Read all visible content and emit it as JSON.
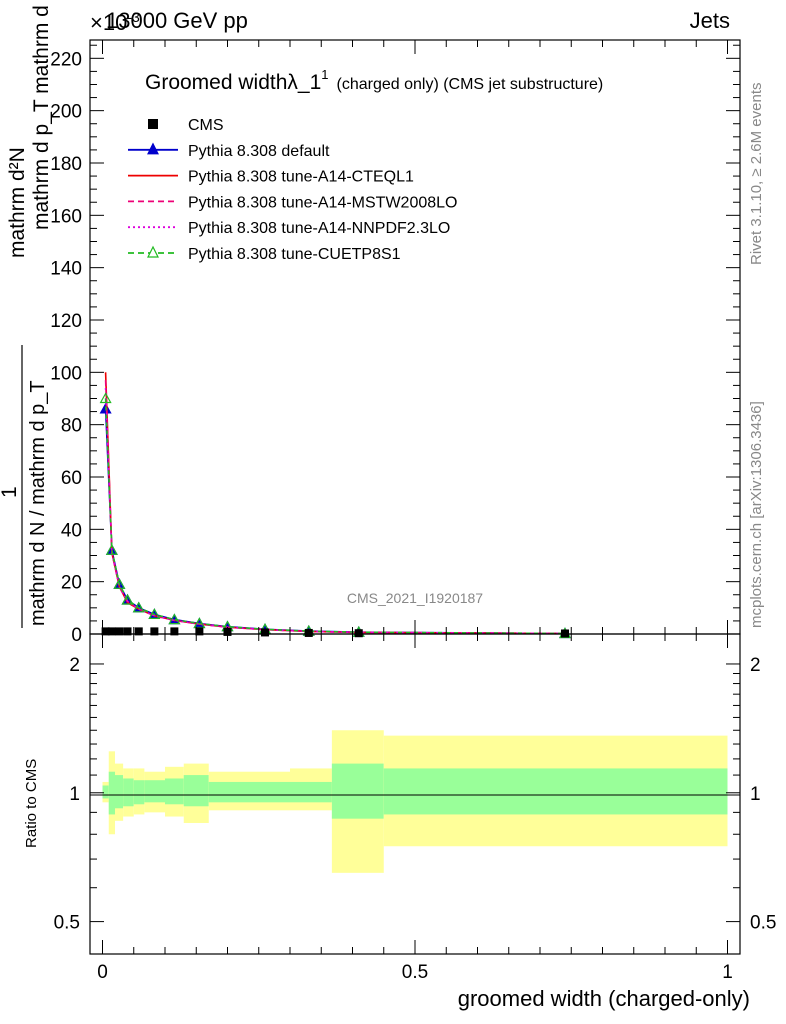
{
  "header": {
    "left": "13000 GeV pp",
    "right": "Jets",
    "exponent": "×10",
    "exponent_power": "-3"
  },
  "side_labels": {
    "rivet": "Rivet 3.1.10, ≥ 2.6M events",
    "mcplots": "mcplots.cern.ch [arXiv:1306.3436]"
  },
  "watermark": "CMS_2021_I1920187",
  "plot_title": {
    "main": "Groomed width",
    "lambda": "λ_1",
    "sup": "1",
    "sub": "(charged only) (CMS jet substructure)"
  },
  "legend": [
    {
      "label": "CMS",
      "color": "#000000",
      "style": "square"
    },
    {
      "label": "Pythia 8.308 default",
      "color": "#0000cc",
      "style": "line-triangle"
    },
    {
      "label": "Pythia 8.308 tune-A14-CTEQL1",
      "color": "#ee0000",
      "style": "solid"
    },
    {
      "label": "Pythia 8.308 tune-A14-MSTW2008LO",
      "color": "#ee0077",
      "style": "dashed"
    },
    {
      "label": "Pythia 8.308 tune-A14-NNPDF2.3LO",
      "color": "#dd00dd",
      "style": "dotted"
    },
    {
      "label": "Pythia 8.308 tune-CUETP8S1",
      "color": "#22bb22",
      "style": "dashed-open-triangle"
    }
  ],
  "ylabel_main": {
    "numerator": "mathrm d²N",
    "fraction_top": "1",
    "fraction_bottom": "mathrm d N / mathrm d p_T",
    "tail": "mathrm d p_T mathrm d lambda"
  },
  "ylabel_ratio": "Ratio to CMS",
  "xlabel": "groomed width (charged-only)",
  "chart_data": {
    "type": "line",
    "main": {
      "xlim": [
        0,
        1
      ],
      "ylim": [
        0,
        227
      ],
      "y_unit_scale": "1e-3",
      "yticks": [
        0,
        20,
        40,
        60,
        80,
        100,
        120,
        140,
        160,
        180,
        200,
        220
      ],
      "data_points": {
        "x": [
          0.005,
          0.015,
          0.027,
          0.04,
          0.058,
          0.083,
          0.115,
          0.155,
          0.2,
          0.26,
          0.33,
          0.41,
          0.74
        ],
        "y": [
          1.0,
          1.0,
          1.0,
          1.0,
          1.0,
          1.0,
          1.0,
          1.0,
          0.8,
          0.6,
          0.4,
          0.3,
          0.2
        ]
      },
      "series": [
        {
          "name": "Pythia 8.308 default",
          "x": [
            0.005,
            0.015,
            0.027,
            0.04,
            0.058,
            0.083,
            0.115,
            0.155,
            0.2,
            0.26,
            0.33,
            0.41,
            0.74
          ],
          "y": [
            86,
            32,
            19,
            13,
            10,
            7.5,
            5.5,
            4,
            2.8,
            1.8,
            1.1,
            0.7,
            0.2
          ]
        },
        {
          "name": "Pythia 8.308 tune-A14-CTEQL1",
          "x": [
            0.005,
            0.015,
            0.027,
            0.04,
            0.058,
            0.083,
            0.115,
            0.155,
            0.2,
            0.26,
            0.33,
            0.41,
            0.74
          ],
          "y": [
            100,
            31,
            18,
            12,
            9.5,
            7,
            5.2,
            3.8,
            2.6,
            1.7,
            1.0,
            0.6,
            0.2
          ]
        },
        {
          "name": "Pythia 8.308 tune-A14-MSTW2008LO",
          "x": [
            0.005,
            0.015,
            0.027,
            0.04,
            0.058,
            0.083,
            0.115,
            0.155,
            0.2,
            0.26,
            0.33,
            0.41,
            0.74
          ],
          "y": [
            97,
            31,
            18,
            12.5,
            9.5,
            7,
            5.2,
            3.8,
            2.6,
            1.7,
            1.0,
            0.6,
            0.2
          ]
        },
        {
          "name": "Pythia 8.308 tune-A14-NNPDF2.3LO",
          "x": [
            0.005,
            0.015,
            0.027,
            0.04,
            0.058,
            0.083,
            0.115,
            0.155,
            0.2,
            0.26,
            0.33,
            0.41,
            0.74
          ],
          "y": [
            94,
            31,
            18,
            12.5,
            9.5,
            7,
            5.2,
            3.8,
            2.6,
            1.7,
            1.0,
            0.6,
            0.2
          ]
        },
        {
          "name": "Pythia 8.308 tune-CUETP8S1",
          "x": [
            0.005,
            0.015,
            0.027,
            0.04,
            0.058,
            0.083,
            0.115,
            0.155,
            0.2,
            0.26,
            0.33,
            0.41,
            0.74
          ],
          "y": [
            90,
            32,
            19,
            13,
            10,
            7.5,
            5.5,
            4,
            2.8,
            1.8,
            1.1,
            0.7,
            0.2
          ]
        }
      ]
    },
    "ratio": {
      "ylim": [
        0.42,
        2.35
      ],
      "yticks": [
        0.5,
        1,
        2
      ],
      "bins": [
        {
          "x0": 0.0,
          "x1": 0.01,
          "in_lo": 0.97,
          "in_hi": 1.04,
          "out_lo": 0.95,
          "out_hi": 1.06
        },
        {
          "x0": 0.01,
          "x1": 0.02,
          "in_lo": 0.89,
          "in_hi": 1.12,
          "out_lo": 0.8,
          "out_hi": 1.25
        },
        {
          "x0": 0.02,
          "x1": 0.033,
          "in_lo": 0.92,
          "in_hi": 1.1,
          "out_lo": 0.86,
          "out_hi": 1.17
        },
        {
          "x0": 0.033,
          "x1": 0.05,
          "in_lo": 0.93,
          "in_hi": 1.08,
          "out_lo": 0.88,
          "out_hi": 1.14
        },
        {
          "x0": 0.05,
          "x1": 0.067,
          "in_lo": 0.94,
          "in_hi": 1.07,
          "out_lo": 0.89,
          "out_hi": 1.14
        },
        {
          "x0": 0.067,
          "x1": 0.1,
          "in_lo": 0.95,
          "in_hi": 1.07,
          "out_lo": 0.9,
          "out_hi": 1.12
        },
        {
          "x0": 0.1,
          "x1": 0.13,
          "in_lo": 0.94,
          "in_hi": 1.08,
          "out_lo": 0.88,
          "out_hi": 1.15
        },
        {
          "x0": 0.13,
          "x1": 0.17,
          "in_lo": 0.93,
          "in_hi": 1.1,
          "out_lo": 0.85,
          "out_hi": 1.17
        },
        {
          "x0": 0.17,
          "x1": 0.3,
          "in_lo": 0.95,
          "in_hi": 1.06,
          "out_lo": 0.91,
          "out_hi": 1.12
        },
        {
          "x0": 0.3,
          "x1": 0.367,
          "in_lo": 0.95,
          "in_hi": 1.06,
          "out_lo": 0.91,
          "out_hi": 1.14
        },
        {
          "x0": 0.367,
          "x1": 0.45,
          "in_lo": 0.87,
          "in_hi": 1.17,
          "out_lo": 0.65,
          "out_hi": 1.4
        },
        {
          "x0": 0.45,
          "x1": 1.0,
          "in_lo": 0.89,
          "in_hi": 1.14,
          "out_lo": 0.75,
          "out_hi": 1.36
        }
      ],
      "inner_color": "#99ff99",
      "outer_color": "#ffff99"
    },
    "xticks": [
      0,
      0.5,
      1
    ]
  }
}
